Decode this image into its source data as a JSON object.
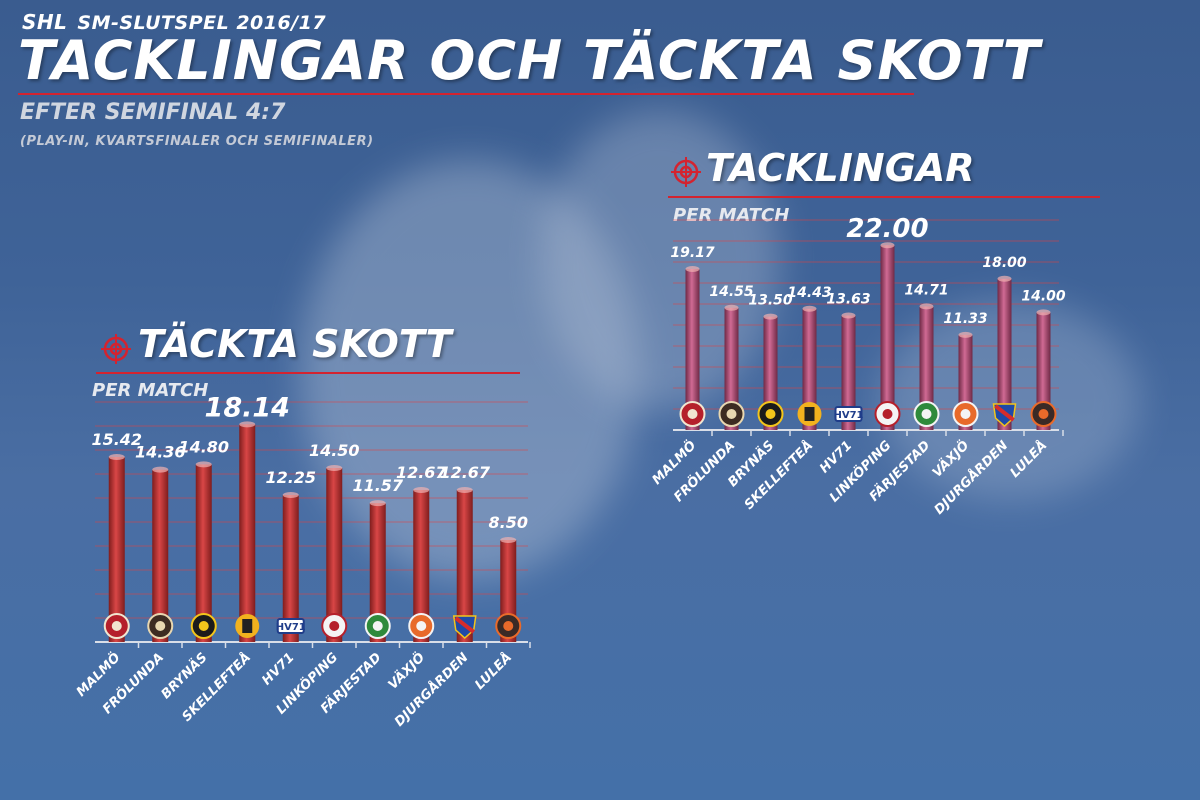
{
  "header": {
    "league": "SHL",
    "season": "SM-SLUTSPEL 2016/17",
    "title": "TACKLINGAR OCH TÄCKTA SKOTT",
    "subtitle": "EFTER SEMIFINAL 4:7",
    "note": "(PLAY-IN, KVARTSFINALER OCH SEMIFINALER)"
  },
  "colors": {
    "accent": "#d4232f",
    "highlight": "#5fe35a",
    "bar_red": "#c23a3a",
    "bar_pink": "#b4527a"
  },
  "chart_data": [
    {
      "type": "bar",
      "title": "TÄCKTA SKOTT",
      "subtitle": "PER MATCH",
      "categories": [
        "MALMÖ",
        "FRÖLUNDA",
        "BRYNÄS",
        "SKELLEFTEÅ",
        "HV71",
        "LINKÖPING",
        "FÄRJESTAD",
        "VÄXJÖ",
        "DJURGÅRDEN",
        "LULEÅ"
      ],
      "values": [
        15.42,
        14.36,
        14.8,
        18.14,
        12.25,
        14.5,
        11.57,
        12.67,
        12.67,
        8.5
      ],
      "labels": [
        "15.42",
        "14.36",
        "14.80",
        "18.14",
        "12.25",
        "14.50",
        "11.57",
        "12.67",
        "12.67",
        "8.50"
      ],
      "highlight_index": 3,
      "ylim": [
        0,
        20
      ],
      "grid": true
    },
    {
      "type": "bar",
      "title": "TACKLINGAR",
      "subtitle": "PER MATCH",
      "categories": [
        "MALMÖ",
        "FRÖLUNDA",
        "BRYNÄS",
        "SKELLEFTEÅ",
        "HV71",
        "LINKÖPING",
        "FÄRJESTAD",
        "VÄXJÖ",
        "DJURGÅRDEN",
        "LULEÅ"
      ],
      "values": [
        19.17,
        14.55,
        13.5,
        14.43,
        13.63,
        22.0,
        14.71,
        11.33,
        18.0,
        14.0
      ],
      "labels": [
        "19.17",
        "14.55",
        "13.50",
        "14.43",
        "13.63",
        "22.00",
        "14.71",
        "11.33",
        "18.00",
        "14.00"
      ],
      "highlight_index": 5,
      "ylim": [
        0,
        25
      ],
      "grid": true
    }
  ],
  "team_icons": [
    "malmo-redhawks-icon",
    "frolunda-indians-icon",
    "brynas-icon",
    "skelleftea-icon",
    "hv71-icon",
    "linkoping-icon",
    "farjestad-icon",
    "vaxjo-lakers-icon",
    "djurgarden-icon",
    "lulea-icon"
  ],
  "team_logo_text": {
    "hv71": "HV71"
  }
}
